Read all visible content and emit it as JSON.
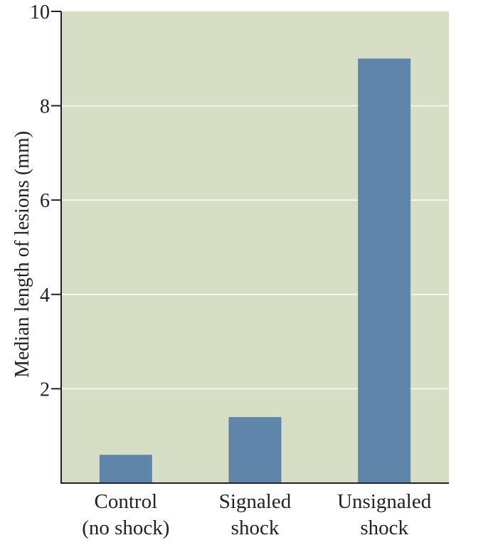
{
  "chart_data": {
    "type": "bar",
    "categories": [
      [
        "Control",
        "(no shock)"
      ],
      [
        "Signaled",
        "shock"
      ],
      [
        "Unsignaled",
        "shock"
      ]
    ],
    "values": [
      0.6,
      1.4,
      9.0
    ],
    "ylabel": "Median length of lesions (mm)",
    "ylim": [
      0,
      10
    ],
    "yticks": [
      2,
      4,
      6,
      8,
      10
    ],
    "grid": true,
    "colors": {
      "background": "#d6dfc6",
      "bar": "#5f86aa",
      "gridline": "#ffffff",
      "axis": "#222222"
    }
  }
}
